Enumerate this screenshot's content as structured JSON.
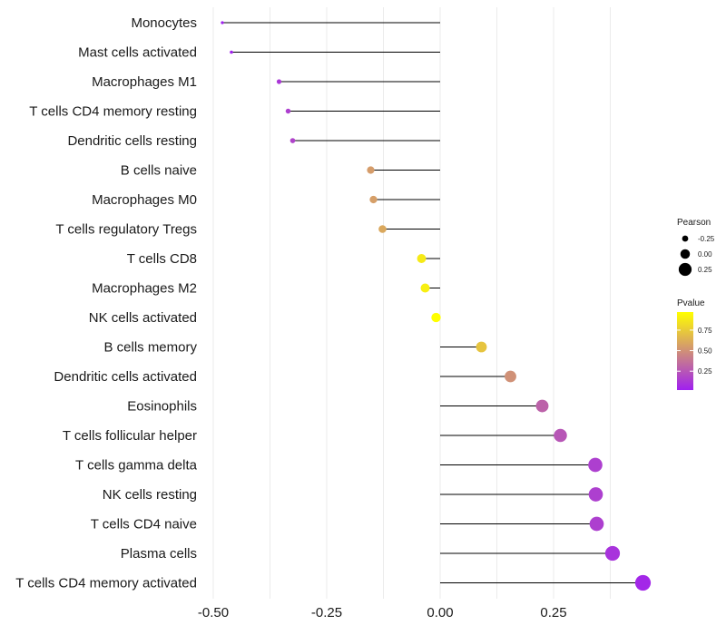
{
  "chart_data": {
    "type": "lollipop",
    "title": "",
    "xlabel": "",
    "ylabel": "",
    "xlim": [
      -0.5,
      0.45
    ],
    "xticks": [
      -0.5,
      -0.25,
      0,
      0.25
    ],
    "xtick_labels": [
      "-0.50",
      "-0.25",
      "0.00",
      "0.25"
    ],
    "grid": true,
    "categories": [
      "Monocytes",
      "Mast cells activated",
      "Macrophages M1",
      "T cells CD4 memory resting",
      "Dendritic cells resting",
      "B cells naive",
      "Macrophages M0",
      "T cells regulatory  Tregs ",
      "T cells CD8",
      "Macrophages M2",
      "NK cells activated",
      "B cells memory",
      "Dendritic cells activated",
      "Eosinophils",
      "T cells follicular helper",
      "T cells gamma delta",
      "NK cells resting",
      "T cells CD4 naive",
      "Plasma cells",
      "T cells CD4 memory activated"
    ],
    "pearson": [
      -0.48,
      -0.46,
      -0.355,
      -0.335,
      -0.325,
      -0.153,
      -0.147,
      -0.127,
      -0.041,
      -0.033,
      -0.009,
      0.091,
      0.155,
      0.225,
      0.265,
      0.342,
      0.343,
      0.345,
      0.38,
      0.447
    ],
    "pvalue": [
      0.02,
      0.03,
      0.12,
      0.15,
      0.17,
      0.55,
      0.56,
      0.6,
      0.88,
      0.9,
      0.97,
      0.72,
      0.5,
      0.3,
      0.25,
      0.15,
      0.15,
      0.15,
      0.1,
      0.05
    ],
    "legend": {
      "pearson": {
        "title": "Pearson",
        "values": [
          -0.25,
          0,
          0.25
        ],
        "labels": [
          "-0.25",
          "0.00",
          "0.25"
        ]
      },
      "pvalue": {
        "title": "Pvalue",
        "ticks": [
          0.25,
          0.5,
          0.75
        ],
        "labels": [
          "0.25",
          "0.50",
          "0.75"
        ],
        "range": [
          0.02,
          0.97
        ]
      }
    },
    "colors": {
      "low": "#a020f0",
      "high": "#ffff00",
      "stem": "#000000",
      "grid": "#ebebeb"
    }
  }
}
